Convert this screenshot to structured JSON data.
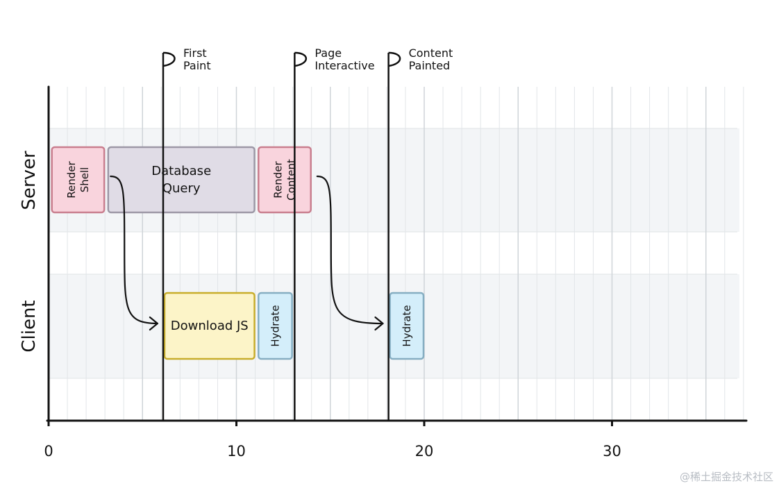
{
  "rows": [
    {
      "label": "Server"
    },
    {
      "label": "Client"
    }
  ],
  "milestones": [
    {
      "label": [
        "First",
        "Paint"
      ],
      "t": 6.1
    },
    {
      "label": [
        "Page",
        "Interactive"
      ],
      "t": 13.1
    },
    {
      "label": [
        "Content",
        "Painted"
      ],
      "t": 18.1
    }
  ],
  "blocks": [
    {
      "label": [
        "Render",
        "Shell"
      ],
      "row": 0,
      "start": 0.1,
      "end": 3.0,
      "vertical": true,
      "fill": "#f9d4dd",
      "stroke": "#c97e8e"
    },
    {
      "label": [
        "Database",
        "Query"
      ],
      "row": 0,
      "start": 3.1,
      "end": 11.0,
      "vertical": false,
      "fill": "#e0dce6",
      "stroke": "#9d98a6"
    },
    {
      "label": [
        "Render",
        "Content"
      ],
      "row": 0,
      "start": 11.1,
      "end": 14.0,
      "vertical": true,
      "fill": "#f9d4dd",
      "stroke": "#c97e8e"
    },
    {
      "label": [
        "Download JS"
      ],
      "row": 1,
      "start": 6.1,
      "end": 11.0,
      "vertical": false,
      "fill": "#fcf4c8",
      "stroke": "#c8ad2a"
    },
    {
      "label": [
        "Hydrate"
      ],
      "row": 1,
      "start": 11.1,
      "end": 13.0,
      "vertical": true,
      "fill": "#d4eefa",
      "stroke": "#86aec2"
    },
    {
      "label": [
        "Hydrate"
      ],
      "row": 1,
      "start": 18.1,
      "end": 20.0,
      "vertical": true,
      "fill": "#d4eefa",
      "stroke": "#86aec2"
    }
  ],
  "arrows": [
    {
      "from": {
        "row": 0,
        "t": 3.3
      },
      "to": {
        "row": 1,
        "t": 5.8
      }
    },
    {
      "from": {
        "row": 0,
        "t": 14.3
      },
      "to": {
        "row": 1,
        "t": 17.8
      }
    }
  ],
  "axis": {
    "ticks": [
      "0",
      "10",
      "20",
      "30"
    ],
    "tick_values": [
      0,
      10,
      20,
      30
    ],
    "max": 37
  },
  "watermark": "@稀土掘金技术社区"
}
